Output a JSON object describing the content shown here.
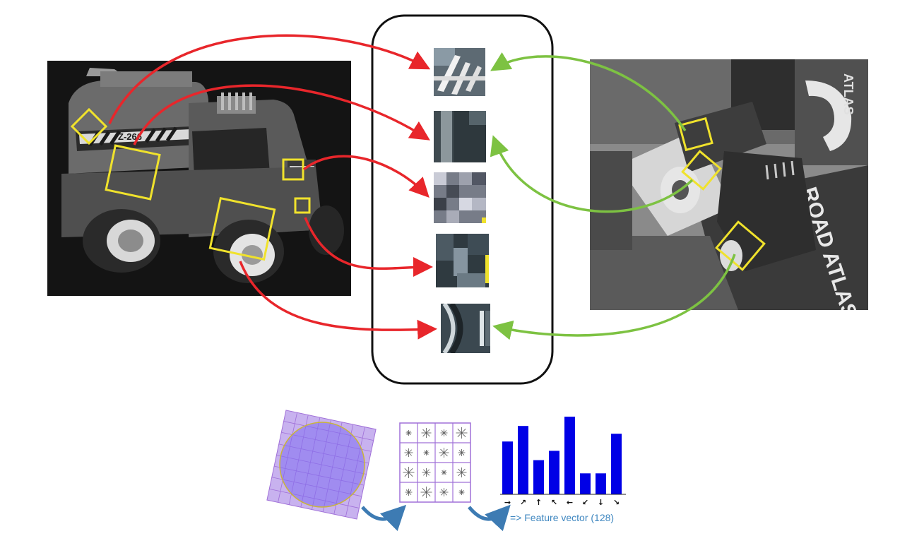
{
  "figure": {
    "caption": "=> Feature vector (128)",
    "histogram_directions": [
      "→",
      "↗",
      "↑",
      "↖",
      "←",
      "↙",
      "↓",
      "↘"
    ],
    "histogram_relative_values": [
      0.68,
      0.88,
      0.44,
      0.56,
      1.0,
      0.27,
      0.27,
      0.78
    ]
  },
  "left_image": {
    "truck_stripe_text": "Z-266"
  },
  "right_image": {
    "book_text": "ROAD ATLAS",
    "mug_text": "ATLAS"
  },
  "colors": {
    "match_left": "#e8262b",
    "match_right": "#7dc242",
    "keypoint_box": "#f0e22c",
    "histogram_bar": "#0000e6",
    "curved_arrow": "#3d7bb3",
    "grid": "#a070d8",
    "caption": "#3f87c0"
  }
}
